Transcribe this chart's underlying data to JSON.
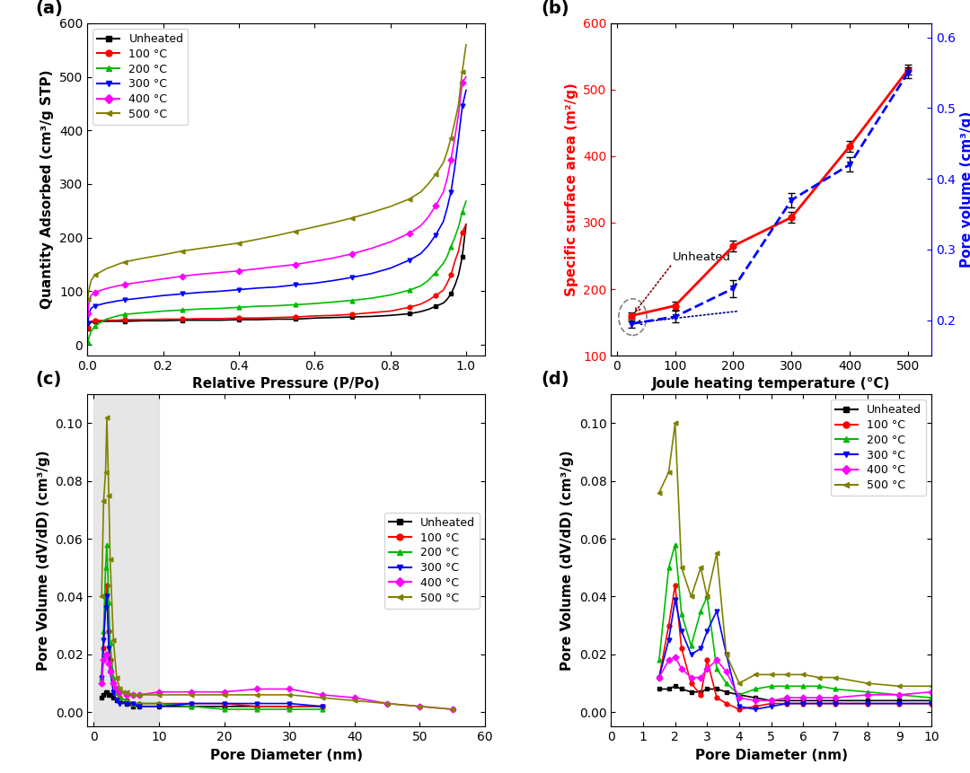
{
  "panel_labels": [
    "(a)",
    "(b)",
    "(c)",
    "(d)"
  ],
  "colors": {
    "unheated": "#000000",
    "100C": "#ff0000",
    "200C": "#00bb00",
    "300C": "#0000ff",
    "400C": "#ff00ff",
    "500C": "#808000"
  },
  "legend_labels": [
    "Unheated",
    "100 °C",
    "200 °C",
    "300 °C",
    "400 °C",
    "500 °C"
  ],
  "panel_a": {
    "xlabel": "Relative Pressure (P/Po)",
    "ylabel": "Quantity Adsorbed (cm³/g STP)",
    "xlim": [
      0.0,
      1.05
    ],
    "ylim": [
      -20,
      600
    ],
    "yticks": [
      0,
      100,
      200,
      300,
      400,
      500,
      600
    ],
    "xticks": [
      0.0,
      0.2,
      0.4,
      0.6,
      0.8,
      1.0
    ],
    "unheated_x": [
      0.001,
      0.005,
      0.01,
      0.02,
      0.05,
      0.08,
      0.1,
      0.15,
      0.2,
      0.25,
      0.3,
      0.35,
      0.4,
      0.45,
      0.5,
      0.55,
      0.6,
      0.65,
      0.7,
      0.75,
      0.8,
      0.85,
      0.88,
      0.9,
      0.92,
      0.94,
      0.95,
      0.96,
      0.97,
      0.98,
      0.99,
      1.0
    ],
    "unheated_y": [
      30,
      38,
      42,
      43,
      44,
      44,
      44,
      45,
      45,
      46,
      46,
      46,
      47,
      47,
      48,
      48,
      50,
      51,
      52,
      53,
      55,
      58,
      62,
      66,
      72,
      78,
      85,
      95,
      110,
      130,
      165,
      225
    ],
    "c100_x": [
      0.001,
      0.005,
      0.01,
      0.02,
      0.05,
      0.08,
      0.1,
      0.15,
      0.2,
      0.25,
      0.3,
      0.35,
      0.4,
      0.45,
      0.5,
      0.55,
      0.6,
      0.65,
      0.7,
      0.75,
      0.8,
      0.85,
      0.88,
      0.9,
      0.92,
      0.94,
      0.95,
      0.96,
      0.97,
      0.98,
      0.99,
      1.0
    ],
    "c100_y": [
      32,
      40,
      44,
      45,
      46,
      46,
      47,
      47,
      48,
      48,
      49,
      49,
      50,
      50,
      51,
      52,
      54,
      55,
      57,
      60,
      63,
      70,
      76,
      83,
      92,
      102,
      115,
      130,
      155,
      175,
      210,
      225
    ],
    "c200_x": [
      0.001,
      0.005,
      0.01,
      0.02,
      0.05,
      0.08,
      0.1,
      0.15,
      0.2,
      0.25,
      0.3,
      0.35,
      0.4,
      0.45,
      0.5,
      0.55,
      0.6,
      0.65,
      0.7,
      0.75,
      0.8,
      0.85,
      0.88,
      0.9,
      0.92,
      0.94,
      0.95,
      0.96,
      0.97,
      0.98,
      0.99,
      1.0
    ],
    "c200_y": [
      5,
      15,
      25,
      35,
      48,
      54,
      57,
      60,
      63,
      65,
      67,
      68,
      70,
      72,
      73,
      75,
      77,
      80,
      83,
      87,
      93,
      102,
      110,
      120,
      135,
      152,
      165,
      183,
      200,
      220,
      248,
      268
    ],
    "c300_x": [
      0.001,
      0.005,
      0.01,
      0.02,
      0.05,
      0.08,
      0.1,
      0.15,
      0.2,
      0.25,
      0.3,
      0.35,
      0.4,
      0.45,
      0.5,
      0.55,
      0.6,
      0.65,
      0.7,
      0.75,
      0.8,
      0.85,
      0.88,
      0.9,
      0.92,
      0.94,
      0.95,
      0.96,
      0.97,
      0.98,
      0.99,
      1.0
    ],
    "c300_y": [
      40,
      60,
      68,
      73,
      78,
      82,
      84,
      88,
      92,
      95,
      98,
      100,
      103,
      106,
      108,
      112,
      115,
      120,
      126,
      133,
      143,
      158,
      170,
      185,
      205,
      230,
      255,
      285,
      330,
      385,
      445,
      475
    ],
    "c400_x": [
      0.001,
      0.005,
      0.01,
      0.02,
      0.05,
      0.08,
      0.1,
      0.15,
      0.2,
      0.25,
      0.3,
      0.35,
      0.4,
      0.45,
      0.5,
      0.55,
      0.6,
      0.65,
      0.7,
      0.75,
      0.8,
      0.85,
      0.88,
      0.9,
      0.92,
      0.94,
      0.95,
      0.96,
      0.97,
      0.98,
      0.99,
      1.0
    ],
    "c400_y": [
      58,
      82,
      92,
      98,
      105,
      110,
      113,
      118,
      123,
      128,
      132,
      135,
      138,
      142,
      146,
      150,
      156,
      162,
      170,
      180,
      192,
      208,
      222,
      238,
      260,
      285,
      310,
      345,
      385,
      430,
      490,
      500
    ],
    "c500_x": [
      0.001,
      0.005,
      0.01,
      0.02,
      0.05,
      0.08,
      0.1,
      0.15,
      0.2,
      0.25,
      0.3,
      0.35,
      0.4,
      0.45,
      0.5,
      0.55,
      0.6,
      0.65,
      0.7,
      0.75,
      0.8,
      0.85,
      0.88,
      0.9,
      0.92,
      0.94,
      0.95,
      0.96,
      0.97,
      0.98,
      0.99,
      1.0
    ],
    "c500_y": [
      85,
      105,
      120,
      130,
      142,
      150,
      155,
      162,
      168,
      175,
      180,
      185,
      190,
      197,
      204,
      212,
      220,
      228,
      237,
      247,
      258,
      272,
      285,
      300,
      318,
      340,
      360,
      385,
      415,
      448,
      510,
      560
    ]
  },
  "panel_b": {
    "xlabel": "Joule heating temperature (°C)",
    "ylabel_left": "Specific surface area (m²/g)",
    "ylabel_right": "Pore volume (cm³/g)",
    "xlim": [
      -10,
      540
    ],
    "ylim_left": [
      100,
      600
    ],
    "ylim_right": [
      0.15,
      0.62
    ],
    "yticks_left": [
      100,
      200,
      300,
      400,
      500,
      600
    ],
    "yticks_right": [
      0.2,
      0.3,
      0.4,
      0.5,
      0.6
    ],
    "xticks": [
      0,
      100,
      200,
      300,
      400,
      500
    ],
    "ssa_x": [
      25,
      100,
      200,
      300,
      400,
      500
    ],
    "ssa_y": [
      160,
      175,
      265,
      308,
      415,
      530
    ],
    "ssa_yerr": [
      5,
      6,
      8,
      8,
      8,
      7
    ],
    "pv_x": [
      25,
      100,
      200,
      300,
      400,
      500
    ],
    "pv_y": [
      0.195,
      0.205,
      0.245,
      0.37,
      0.42,
      0.55
    ],
    "pv_yerr": [
      0.005,
      0.008,
      0.012,
      0.01,
      0.01,
      0.008
    ]
  },
  "panel_c": {
    "xlabel": "Pore Diameter (nm)",
    "ylabel": "Pore Volume (dV/dD) (cm³/g)",
    "xlim": [
      -1,
      60
    ],
    "ylim": [
      -0.005,
      0.11
    ],
    "yticks": [
      0.0,
      0.02,
      0.04,
      0.06,
      0.08,
      0.1
    ],
    "xticks": [
      0,
      10,
      20,
      30,
      40,
      50,
      60
    ],
    "shaded_xmin": 0,
    "shaded_xmax": 10,
    "unheated_x": [
      1.2,
      1.5,
      1.8,
      2.0,
      2.3,
      2.5,
      3.0,
      3.5,
      4.0,
      5.0,
      6.0,
      7.0,
      10.0,
      15.0,
      20.0,
      25.0,
      30.0,
      35.0
    ],
    "unheated_y": [
      0.005,
      0.006,
      0.007,
      0.007,
      0.006,
      0.006,
      0.005,
      0.004,
      0.004,
      0.003,
      0.002,
      0.002,
      0.002,
      0.002,
      0.002,
      0.002,
      0.002,
      0.002
    ],
    "c100_x": [
      1.2,
      1.5,
      1.8,
      2.0,
      2.3,
      2.5,
      3.0,
      3.5,
      4.0,
      5.0,
      6.0,
      7.0,
      10.0,
      15.0,
      20.0,
      25.0,
      30.0,
      35.0
    ],
    "c100_y": [
      0.01,
      0.022,
      0.04,
      0.044,
      0.028,
      0.018,
      0.01,
      0.007,
      0.005,
      0.004,
      0.003,
      0.003,
      0.003,
      0.003,
      0.003,
      0.002,
      0.002,
      0.002
    ],
    "c200_x": [
      1.2,
      1.5,
      1.8,
      2.0,
      2.3,
      2.5,
      3.0,
      3.5,
      4.0,
      5.0,
      6.0,
      7.0,
      10.0,
      15.0,
      20.0,
      25.0,
      30.0,
      35.0
    ],
    "c200_y": [
      0.012,
      0.028,
      0.05,
      0.058,
      0.038,
      0.024,
      0.012,
      0.007,
      0.005,
      0.004,
      0.003,
      0.003,
      0.003,
      0.002,
      0.001,
      0.001,
      0.001,
      0.001
    ],
    "c300_x": [
      1.2,
      1.5,
      1.8,
      2.0,
      2.3,
      2.5,
      3.0,
      3.5,
      4.0,
      5.0,
      6.0,
      7.0,
      10.0,
      15.0,
      20.0,
      25.0,
      30.0,
      35.0
    ],
    "c300_y": [
      0.012,
      0.025,
      0.036,
      0.04,
      0.022,
      0.014,
      0.007,
      0.004,
      0.003,
      0.003,
      0.003,
      0.002,
      0.002,
      0.003,
      0.003,
      0.003,
      0.003,
      0.002
    ],
    "c400_x": [
      1.2,
      1.5,
      1.8,
      2.0,
      2.3,
      2.5,
      3.0,
      3.5,
      4.0,
      5.0,
      6.0,
      7.0,
      10.0,
      15.0,
      20.0,
      25.0,
      30.0,
      35.0,
      40.0,
      45.0,
      50.0,
      55.0
    ],
    "c400_y": [
      0.01,
      0.018,
      0.02,
      0.02,
      0.017,
      0.014,
      0.01,
      0.008,
      0.007,
      0.006,
      0.006,
      0.006,
      0.007,
      0.007,
      0.007,
      0.008,
      0.008,
      0.006,
      0.005,
      0.003,
      0.002,
      0.001
    ],
    "c500_x": [
      1.2,
      1.5,
      1.8,
      2.0,
      2.3,
      2.5,
      3.0,
      3.5,
      4.0,
      4.5,
      5.0,
      6.0,
      7.0,
      10.0,
      15.0,
      20.0,
      25.0,
      30.0,
      35.0,
      40.0,
      45.0,
      50.0,
      55.0
    ],
    "c500_y": [
      0.04,
      0.073,
      0.083,
      0.102,
      0.075,
      0.053,
      0.025,
      0.012,
      0.008,
      0.007,
      0.007,
      0.006,
      0.006,
      0.006,
      0.006,
      0.006,
      0.006,
      0.006,
      0.005,
      0.004,
      0.003,
      0.002,
      0.001
    ]
  },
  "panel_d": {
    "xlabel": "Pore Diameter (nm)",
    "ylabel": "Pore Volume (dV/dD) (cm³/g)",
    "xlim": [
      1,
      10
    ],
    "ylim": [
      -0.005,
      0.11
    ],
    "yticks": [
      0.0,
      0.02,
      0.04,
      0.06,
      0.08,
      0.1
    ],
    "xticks": [
      0,
      1,
      2,
      3,
      4,
      5,
      6,
      7,
      8,
      9,
      10
    ],
    "unheated_x": [
      1.5,
      1.8,
      2.0,
      2.2,
      2.5,
      2.8,
      3.0,
      3.3,
      3.6,
      4.0,
      4.5,
      5.0,
      5.5,
      6.0,
      6.5,
      7.0,
      8.0,
      9.0,
      10.0
    ],
    "unheated_y": [
      0.008,
      0.008,
      0.009,
      0.008,
      0.007,
      0.007,
      0.008,
      0.008,
      0.007,
      0.006,
      0.005,
      0.004,
      0.004,
      0.004,
      0.004,
      0.004,
      0.004,
      0.004,
      0.004
    ],
    "c100_x": [
      1.5,
      1.8,
      2.0,
      2.2,
      2.5,
      2.8,
      3.0,
      3.3,
      3.6,
      4.0,
      4.5,
      5.0,
      5.5,
      6.0,
      6.5,
      7.0,
      8.0,
      9.0,
      10.0
    ],
    "c100_y": [
      0.012,
      0.03,
      0.044,
      0.022,
      0.01,
      0.006,
      0.018,
      0.005,
      0.003,
      0.001,
      0.002,
      0.003,
      0.003,
      0.003,
      0.003,
      0.003,
      0.003,
      0.003,
      0.003
    ],
    "c200_x": [
      1.5,
      1.8,
      2.0,
      2.2,
      2.5,
      2.8,
      3.0,
      3.3,
      3.6,
      4.0,
      4.5,
      5.0,
      5.5,
      6.0,
      6.5,
      7.0,
      8.0,
      9.0,
      10.0
    ],
    "c200_y": [
      0.018,
      0.05,
      0.058,
      0.034,
      0.023,
      0.035,
      0.04,
      0.015,
      0.01,
      0.006,
      0.008,
      0.009,
      0.009,
      0.009,
      0.009,
      0.008,
      0.007,
      0.006,
      0.005
    ],
    "c300_x": [
      1.5,
      1.8,
      2.0,
      2.2,
      2.5,
      2.8,
      3.0,
      3.3,
      3.6,
      4.0,
      4.5,
      5.0,
      5.5,
      6.0,
      6.5,
      7.0,
      8.0,
      9.0,
      10.0
    ],
    "c300_y": [
      0.012,
      0.025,
      0.039,
      0.028,
      0.02,
      0.022,
      0.028,
      0.035,
      0.02,
      0.002,
      0.001,
      0.002,
      0.003,
      0.003,
      0.003,
      0.003,
      0.003,
      0.003,
      0.003
    ],
    "c400_x": [
      1.5,
      1.8,
      2.0,
      2.2,
      2.5,
      2.8,
      3.0,
      3.3,
      3.6,
      4.0,
      4.5,
      5.0,
      5.5,
      6.0,
      6.5,
      7.0,
      8.0,
      9.0,
      10.0
    ],
    "c400_y": [
      0.012,
      0.018,
      0.019,
      0.015,
      0.012,
      0.012,
      0.015,
      0.018,
      0.014,
      0.005,
      0.004,
      0.004,
      0.005,
      0.005,
      0.005,
      0.005,
      0.006,
      0.006,
      0.007
    ],
    "c500_x": [
      1.5,
      1.8,
      2.0,
      2.2,
      2.5,
      2.8,
      3.0,
      3.3,
      3.6,
      4.0,
      4.5,
      5.0,
      5.5,
      6.0,
      6.5,
      7.0,
      8.0,
      9.0,
      10.0
    ],
    "c500_y": [
      0.076,
      0.083,
      0.1,
      0.05,
      0.04,
      0.05,
      0.04,
      0.055,
      0.02,
      0.01,
      0.013,
      0.013,
      0.013,
      0.013,
      0.012,
      0.012,
      0.01,
      0.009,
      0.009
    ]
  }
}
